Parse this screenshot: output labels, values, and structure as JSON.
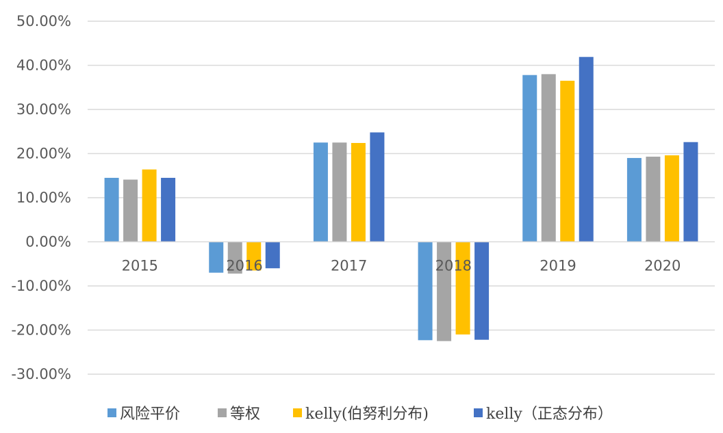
{
  "chart_data": {
    "type": "bar",
    "title": "",
    "xlabel": "",
    "ylabel": "",
    "ylim": [
      -30,
      50
    ],
    "yticks": [
      50,
      40,
      30,
      20,
      10,
      0,
      -10,
      -20,
      -30
    ],
    "ytick_labels": [
      "50.00%",
      "40.00%",
      "30.00%",
      "20.00%",
      "10.00%",
      "0.00%",
      "-10.00%",
      "-20.00%",
      "-30.00%"
    ],
    "categories": [
      "2015",
      "2016",
      "2017",
      "2018",
      "2019",
      "2020"
    ],
    "grid": true,
    "legend_position": "bottom",
    "series": [
      {
        "name": "风险平价",
        "color": "#5b9bd5",
        "values": [
          14.5,
          -7.0,
          22.5,
          -22.3,
          37.8,
          19.0
        ]
      },
      {
        "name": "等权",
        "color": "#a5a5a5",
        "values": [
          14.1,
          -7.2,
          22.5,
          -22.5,
          38.0,
          19.3
        ]
      },
      {
        "name": "kelly(伯努利分布)",
        "color": "#ffc000",
        "values": [
          16.4,
          -6.5,
          22.4,
          -21.0,
          36.5,
          19.6
        ]
      },
      {
        "name": "kelly（正态分布）",
        "color": "#4472c4",
        "values": [
          14.5,
          -6.0,
          24.8,
          -22.2,
          41.9,
          22.6
        ]
      }
    ]
  }
}
